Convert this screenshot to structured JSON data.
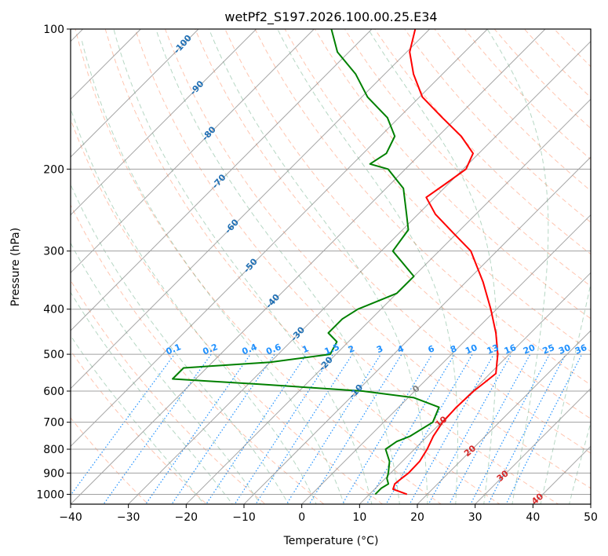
{
  "chart_data": {
    "type": "line",
    "title": "wetPf2_S197.2026.100.00.25.E34",
    "xlabel": "Temperature (°C)",
    "ylabel": "Pressure (hPa)",
    "xlim": [
      -40,
      50
    ],
    "ylim": [
      1050,
      100
    ],
    "y_scale": "log",
    "grid": true,
    "x_ticks": [
      -40,
      -30,
      -20,
      -10,
      0,
      10,
      20,
      30,
      40,
      50
    ],
    "y_ticks": [
      100,
      200,
      300,
      400,
      500,
      600,
      700,
      800,
      900,
      1000
    ],
    "skew_degrees": 45,
    "colors": {
      "temperature": "#ff0000",
      "dewpoint": "#008000",
      "dry_adiabat": "#ff7f50",
      "moist_adiabat": "#2e8b57",
      "mixing_ratio": "#1e90ff",
      "isotherm": "#808080"
    },
    "series": [
      {
        "id": "temperature",
        "points": [
          [
            1000,
            16.5
          ],
          [
            975,
            13.2
          ],
          [
            950,
            12.6
          ],
          [
            925,
            12.8
          ],
          [
            900,
            13.1
          ],
          [
            850,
            13.0
          ],
          [
            800,
            12.2
          ],
          [
            750,
            11.0
          ],
          [
            700,
            10.2
          ],
          [
            650,
            10.0
          ],
          [
            600,
            10.2
          ],
          [
            575,
            10.6
          ],
          [
            550,
            11.0
          ],
          [
            500,
            8.0
          ],
          [
            450,
            4.0
          ],
          [
            400,
            -1.0
          ],
          [
            350,
            -7.0
          ],
          [
            300,
            -14.5
          ],
          [
            275,
            -20.5
          ],
          [
            250,
            -27.0
          ],
          [
            230,
            -31.5
          ],
          [
            215,
            -30.5
          ],
          [
            200,
            -29.5
          ],
          [
            185,
            -31.0
          ],
          [
            170,
            -36.0
          ],
          [
            155,
            -42.5
          ],
          [
            140,
            -49.5
          ],
          [
            125,
            -55.0
          ],
          [
            112,
            -59.5
          ],
          [
            100,
            -62.5
          ]
        ]
      },
      {
        "id": "dewpoint",
        "points": [
          [
            1000,
            11.0
          ],
          [
            970,
            11.0
          ],
          [
            950,
            11.5
          ],
          [
            925,
            10.3
          ],
          [
            900,
            9.6
          ],
          [
            850,
            7.8
          ],
          [
            800,
            5.0
          ],
          [
            770,
            5.6
          ],
          [
            750,
            7.0
          ],
          [
            700,
            8.5
          ],
          [
            650,
            7.0
          ],
          [
            620,
            1.0
          ],
          [
            600,
            -9.0
          ],
          [
            580,
            -28.0
          ],
          [
            565,
            -44.0
          ],
          [
            535,
            -44.0
          ],
          [
            520,
            -30.0
          ],
          [
            500,
            -21.0
          ],
          [
            470,
            -22.0
          ],
          [
            450,
            -25.0
          ],
          [
            420,
            -25.0
          ],
          [
            400,
            -24.0
          ],
          [
            370,
            -20.0
          ],
          [
            340,
            -20.0
          ],
          [
            300,
            -28.0
          ],
          [
            270,
            -29.0
          ],
          [
            250,
            -32.0
          ],
          [
            220,
            -37.0
          ],
          [
            200,
            -43.0
          ],
          [
            195,
            -47.0
          ],
          [
            185,
            -46.0
          ],
          [
            170,
            -47.5
          ],
          [
            155,
            -52.0
          ],
          [
            140,
            -59.0
          ],
          [
            125,
            -65.0
          ],
          [
            112,
            -72.0
          ],
          [
            100,
            -77.0
          ]
        ]
      }
    ],
    "dry_adiabat_labels": [
      {
        "text": "-100",
        "t": -100,
        "p": 108
      },
      {
        "text": "-90",
        "t": -90,
        "p": 134
      },
      {
        "text": "-80",
        "t": -80,
        "p": 168
      },
      {
        "text": "-70",
        "t": -70,
        "p": 213
      },
      {
        "text": "-60",
        "t": -60,
        "p": 266
      },
      {
        "text": "-50",
        "t": -50,
        "p": 323
      },
      {
        "text": "-40",
        "t": -40,
        "p": 385
      },
      {
        "text": "-30",
        "t": -30,
        "p": 453
      },
      {
        "text": "-20",
        "t": -20,
        "p": 525
      },
      {
        "text": "-10",
        "t": -10,
        "p": 602
      }
    ],
    "moist_adiabat_labels": [
      {
        "text": "0",
        "t": 0,
        "p": 595
      },
      {
        "text": "10",
        "t": 10,
        "p": 700
      },
      {
        "text": "20",
        "t": 20,
        "p": 808
      },
      {
        "text": "30",
        "t": 30,
        "p": 915
      },
      {
        "text": "40",
        "t": 40,
        "p": 1025
      }
    ],
    "mixing_ratio_labels": [
      "0.1",
      "0.2",
      "0.4",
      "0.6",
      "1",
      "1.5",
      "2",
      "3",
      "4",
      "6",
      "8",
      "10",
      "13",
      "16",
      "20",
      "25",
      "30",
      "36"
    ],
    "mixing_ratio_values": [
      0.1,
      0.2,
      0.4,
      0.6,
      1,
      1.5,
      2,
      3,
      4,
      6,
      8,
      10,
      13,
      16,
      20,
      25,
      30,
      36
    ]
  }
}
